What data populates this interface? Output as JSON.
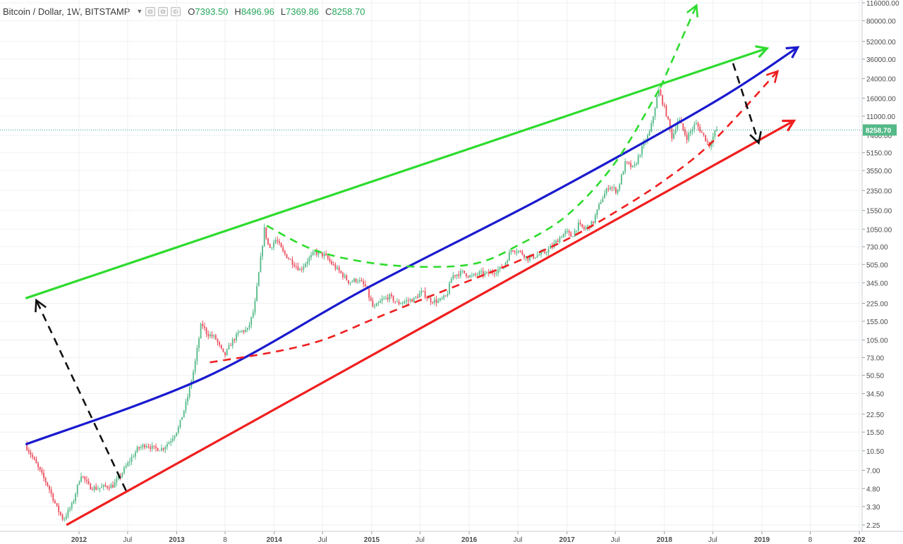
{
  "header": {
    "symbol_title": "Bitcoin / Dollar, 1W, BITSTAMP",
    "ohlc": [
      {
        "key": "O",
        "value": "7393.50"
      },
      {
        "key": "H",
        "value": "8496.96"
      },
      {
        "key": "L",
        "value": "7369.86"
      },
      {
        "key": "C",
        "value": "8258.70"
      }
    ]
  },
  "chart_data": {
    "type": "line",
    "title": "",
    "xlabel": "",
    "ylabel": "",
    "y_scale": "log",
    "grid": true,
    "legend": "none",
    "current_price": "8258.70",
    "x_tick_labels": [
      {
        "label": "2012",
        "date": "2012-01-01"
      },
      {
        "label": "Jul",
        "date": "2012-07-01"
      },
      {
        "label": "2013",
        "date": "2013-01-01"
      },
      {
        "label": "8",
        "date": "2013-07-01"
      },
      {
        "label": "2014",
        "date": "2014-01-01"
      },
      {
        "label": "Jul",
        "date": "2014-07-01"
      },
      {
        "label": "2015",
        "date": "2015-01-01"
      },
      {
        "label": "Jul",
        "date": "2015-07-01"
      },
      {
        "label": "2016",
        "date": "2016-01-01"
      },
      {
        "label": "Jul",
        "date": "2016-07-01"
      },
      {
        "label": "2017",
        "date": "2017-01-01"
      },
      {
        "label": "Jul",
        "date": "2017-07-01"
      },
      {
        "label": "2018",
        "date": "2018-01-01"
      },
      {
        "label": "Jul",
        "date": "2018-07-01"
      },
      {
        "label": "2019",
        "date": "2019-01-01"
      },
      {
        "label": "8",
        "date": "2019-07-01"
      },
      {
        "label": "202",
        "date": "2020-01-01"
      }
    ],
    "y_tick_labels": [
      "116000.00",
      "80000.00",
      "52000.00",
      "36000.00",
      "24000.00",
      "16000.00",
      "11000.00",
      "7400.00",
      "5150.00",
      "3550.00",
      "2350.00",
      "1550.00",
      "1050.00",
      "730.00",
      "505.00",
      "345.00",
      "225.00",
      "155.00",
      "105.00",
      "73.00",
      "50.50",
      "34.50",
      "22.50",
      "15.50",
      "10.50",
      "7.00",
      "4.80",
      "3.30",
      "2.25"
    ],
    "price_series": {
      "name": "",
      "points": [
        {
          "date": "2011-06-20",
          "price": 12
        },
        {
          "date": "2011-07-20",
          "price": 9
        },
        {
          "date": "2011-08-20",
          "price": 6.5
        },
        {
          "date": "2011-09-15",
          "price": 5
        },
        {
          "date": "2011-10-15",
          "price": 3.3
        },
        {
          "date": "2011-11-10",
          "price": 2.5
        },
        {
          "date": "2011-12-15",
          "price": 3.5
        },
        {
          "date": "2012-01-15",
          "price": 6.5
        },
        {
          "date": "2012-02-15",
          "price": 5
        },
        {
          "date": "2012-03-15",
          "price": 4.8
        },
        {
          "date": "2012-04-15",
          "price": 5
        },
        {
          "date": "2012-05-15",
          "price": 5.1
        },
        {
          "date": "2012-06-15",
          "price": 6.5
        },
        {
          "date": "2012-07-15",
          "price": 8.5
        },
        {
          "date": "2012-08-15",
          "price": 11
        },
        {
          "date": "2012-09-15",
          "price": 12
        },
        {
          "date": "2012-10-15",
          "price": 11
        },
        {
          "date": "2012-11-15",
          "price": 11
        },
        {
          "date": "2012-12-15",
          "price": 13
        },
        {
          "date": "2013-01-15",
          "price": 17
        },
        {
          "date": "2013-02-15",
          "price": 30
        },
        {
          "date": "2013-03-15",
          "price": 60
        },
        {
          "date": "2013-04-10",
          "price": 150
        },
        {
          "date": "2013-05-01",
          "price": 120
        },
        {
          "date": "2013-06-01",
          "price": 110
        },
        {
          "date": "2013-07-05",
          "price": 75
        },
        {
          "date": "2013-08-01",
          "price": 100
        },
        {
          "date": "2013-09-01",
          "price": 125
        },
        {
          "date": "2013-10-01",
          "price": 130
        },
        {
          "date": "2013-10-25",
          "price": 200
        },
        {
          "date": "2013-11-15",
          "price": 500
        },
        {
          "date": "2013-12-02",
          "price": 1050
        },
        {
          "date": "2013-12-20",
          "price": 700
        },
        {
          "date": "2014-01-15",
          "price": 850
        },
        {
          "date": "2014-02-10",
          "price": 650
        },
        {
          "date": "2014-03-10",
          "price": 550
        },
        {
          "date": "2014-04-15",
          "price": 450
        },
        {
          "date": "2014-05-15",
          "price": 560
        },
        {
          "date": "2014-06-10",
          "price": 650
        },
        {
          "date": "2014-07-15",
          "price": 610
        },
        {
          "date": "2014-08-15",
          "price": 500
        },
        {
          "date": "2014-09-15",
          "price": 420
        },
        {
          "date": "2014-10-15",
          "price": 350
        },
        {
          "date": "2014-11-15",
          "price": 370
        },
        {
          "date": "2014-12-15",
          "price": 320
        },
        {
          "date": "2015-01-15",
          "price": 200
        },
        {
          "date": "2015-02-15",
          "price": 240
        },
        {
          "date": "2015-03-15",
          "price": 260
        },
        {
          "date": "2015-04-15",
          "price": 225
        },
        {
          "date": "2015-05-15",
          "price": 235
        },
        {
          "date": "2015-06-15",
          "price": 245
        },
        {
          "date": "2015-07-15",
          "price": 285
        },
        {
          "date": "2015-08-15",
          "price": 240
        },
        {
          "date": "2015-09-15",
          "price": 235
        },
        {
          "date": "2015-10-15",
          "price": 260
        },
        {
          "date": "2015-11-05",
          "price": 400
        },
        {
          "date": "2015-12-15",
          "price": 430
        },
        {
          "date": "2016-01-15",
          "price": 390
        },
        {
          "date": "2016-02-15",
          "price": 420
        },
        {
          "date": "2016-03-15",
          "price": 415
        },
        {
          "date": "2016-04-15",
          "price": 440
        },
        {
          "date": "2016-05-15",
          "price": 480
        },
        {
          "date": "2016-06-15",
          "price": 700
        },
        {
          "date": "2016-07-15",
          "price": 660
        },
        {
          "date": "2016-08-15",
          "price": 575
        },
        {
          "date": "2016-09-15",
          "price": 605
        },
        {
          "date": "2016-10-15",
          "price": 640
        },
        {
          "date": "2016-11-15",
          "price": 740
        },
        {
          "date": "2016-12-15",
          "price": 900
        },
        {
          "date": "2017-01-05",
          "price": 1000
        },
        {
          "date": "2017-01-25",
          "price": 900
        },
        {
          "date": "2017-02-20",
          "price": 1150
        },
        {
          "date": "2017-03-15",
          "price": 1050
        },
        {
          "date": "2017-04-15",
          "price": 1200
        },
        {
          "date": "2017-05-15",
          "price": 1900
        },
        {
          "date": "2017-06-15",
          "price": 2600
        },
        {
          "date": "2017-07-15",
          "price": 2300
        },
        {
          "date": "2017-08-15",
          "price": 4200
        },
        {
          "date": "2017-09-15",
          "price": 3700
        },
        {
          "date": "2017-10-15",
          "price": 5600
        },
        {
          "date": "2017-11-15",
          "price": 8000
        },
        {
          "date": "2017-12-17",
          "price": 19000
        },
        {
          "date": "2018-01-15",
          "price": 11500
        },
        {
          "date": "2018-02-06",
          "price": 7000
        },
        {
          "date": "2018-03-01",
          "price": 10500
        },
        {
          "date": "2018-04-01",
          "price": 7000
        },
        {
          "date": "2018-05-05",
          "price": 9500
        },
        {
          "date": "2018-06-01",
          "price": 7500
        },
        {
          "date": "2018-06-25",
          "price": 6000
        },
        {
          "date": "2018-07-20",
          "price": 8258.7
        }
      ]
    },
    "annotations": [
      {
        "kind": "line",
        "color": "#2edb2e",
        "style": "solid",
        "arrow": true,
        "points": [
          {
            "date": "2011-06-15",
            "price": 250
          },
          {
            "date": "2019-01-20",
            "price": 45000
          }
        ]
      },
      {
        "kind": "line",
        "color": "#1a1acf",
        "style": "solid",
        "arrow": true,
        "points": [
          {
            "date": "2011-06-15",
            "price": 12
          },
          {
            "date": "2013-04-15",
            "price": 48
          },
          {
            "date": "2014-12-15",
            "price": 310
          },
          {
            "date": "2016-10-15",
            "price": 2100
          },
          {
            "date": "2018-07-01",
            "price": 14500
          },
          {
            "date": "2019-05-15",
            "price": 46000
          }
        ]
      },
      {
        "kind": "line",
        "color": "#f01e1e",
        "style": "solid",
        "arrow": true,
        "points": [
          {
            "date": "2011-11-15",
            "price": 2.25
          },
          {
            "date": "2019-05-01",
            "price": 10000
          }
        ]
      },
      {
        "kind": "line",
        "color": "#2edb2e",
        "style": "dashed",
        "arrow": false,
        "points": [
          {
            "date": "2013-12-04",
            "price": 1130
          },
          {
            "date": "2014-06-01",
            "price": 680
          },
          {
            "date": "2015-01-01",
            "price": 520
          },
          {
            "date": "2015-08-01",
            "price": 480
          },
          {
            "date": "2016-02-01",
            "price": 520
          },
          {
            "date": "2016-07-01",
            "price": 750
          },
          {
            "date": "2017-01-01",
            "price": 1400
          },
          {
            "date": "2017-07-01",
            "price": 4200
          },
          {
            "date": "2017-12-17",
            "price": 20000
          }
        ]
      },
      {
        "kind": "line",
        "color": "#2edb2e",
        "style": "dashed",
        "arrow": true,
        "points": [
          {
            "date": "2017-12-17",
            "price": 20000
          },
          {
            "date": "2018-05-01",
            "price": 110000
          }
        ]
      },
      {
        "kind": "line",
        "color": "#f01e1e",
        "style": "dashed",
        "arrow": true,
        "points": [
          {
            "date": "2013-05-05",
            "price": 66
          },
          {
            "date": "2014-01-01",
            "price": 82
          },
          {
            "date": "2014-07-01",
            "price": 105
          },
          {
            "date": "2015-01-01",
            "price": 160
          },
          {
            "date": "2015-07-01",
            "price": 240
          },
          {
            "date": "2016-01-01",
            "price": 360
          },
          {
            "date": "2016-07-01",
            "price": 540
          },
          {
            "date": "2017-01-01",
            "price": 850
          },
          {
            "date": "2017-07-01",
            "price": 1500
          },
          {
            "date": "2018-01-01",
            "price": 2900
          },
          {
            "date": "2018-07-01",
            "price": 6500
          },
          {
            "date": "2019-03-01",
            "price": 28000
          }
        ]
      },
      {
        "kind": "line",
        "color": "#111111",
        "style": "dashed",
        "arrow": true,
        "points": [
          {
            "date": "2012-06-25",
            "price": 4.6
          },
          {
            "date": "2011-07-25",
            "price": 240
          }
        ]
      },
      {
        "kind": "line",
        "color": "#111111",
        "style": "dashed",
        "arrow": true,
        "points": [
          {
            "date": "2018-09-15",
            "price": 33000
          },
          {
            "date": "2018-12-20",
            "price": 6300
          }
        ]
      }
    ]
  }
}
